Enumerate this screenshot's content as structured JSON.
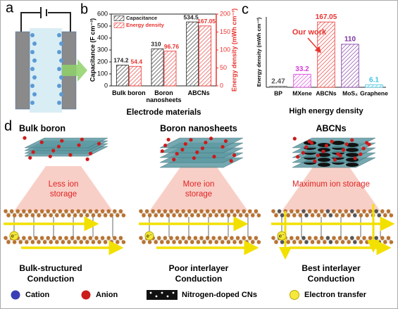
{
  "panel_labels": [
    "a",
    "b",
    "c",
    "d"
  ],
  "chart_data": [
    {
      "type": "bar",
      "categories": [
        "Bulk boron",
        "Boron nanosheets",
        "ABCNs"
      ],
      "series": [
        {
          "name": "Capacitance",
          "color": "#222222",
          "values": [
            174.2,
            310,
            534.5
          ]
        },
        {
          "name": "Energy density",
          "color": "#e8332e",
          "values": [
            54.4,
            96.76,
            167.05
          ],
          "axis": "y2"
        }
      ],
      "ylim": [
        0,
        600
      ],
      "yticks": [
        0,
        100,
        200,
        300,
        400,
        500,
        600
      ],
      "y2lim": [
        0,
        200
      ],
      "y2ticks": [
        0,
        50,
        100,
        150,
        200
      ],
      "xlabel": "Electrode materials",
      "ylabel": "Capacitance (F cm⁻³)",
      "y2label": "Energy density (mWh cm⁻³)",
      "legend": "upper left",
      "hatched": true
    },
    {
      "type": "bar",
      "categories": [
        "BP",
        "MXene",
        "ABCNs",
        "MoS₂",
        "Graphene"
      ],
      "values": [
        2.47,
        33.2,
        167.05,
        110,
        6.1
      ],
      "colors": [
        "#555555",
        "#d63bd6",
        "#e8332e",
        "#7b2f9e",
        "#3ec3e0"
      ],
      "ylim": [
        0,
        180
      ],
      "xlabel": "High energy density",
      "ylabel": "Energy density (mWh cm⁻³)",
      "annotation": "Our work",
      "annotation_category": 2,
      "hatched": true
    }
  ],
  "mechanism": {
    "columns": [
      {
        "title": "Bulk boron",
        "storage": [
          "Less ion",
          "storage"
        ],
        "conduction": [
          "Bulk-structured",
          "Conduction"
        ]
      },
      {
        "title": "Boron nanosheets",
        "storage": [
          "More ion",
          "storage"
        ],
        "conduction": [
          "Poor interlayer",
          "Conduction"
        ]
      },
      {
        "title": "ABCNs",
        "storage": [
          "Maximum ion storage"
        ],
        "conduction": [
          "Best interlayer",
          "Conduction"
        ]
      }
    ],
    "electron_symbol": "e⁻"
  },
  "legend": [
    "Cation",
    "Anion",
    "Nitrogen-doped CNs",
    "Electron transfer"
  ]
}
